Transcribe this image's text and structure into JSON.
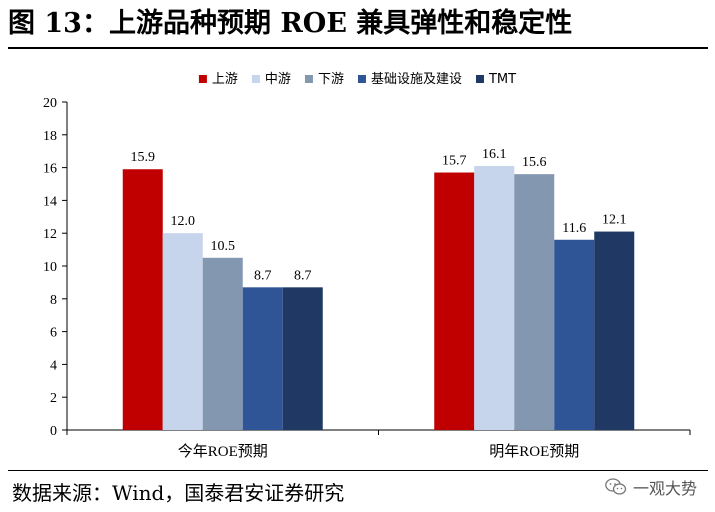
{
  "figure": {
    "title": "图 13：上游品种预期 ROE 兼具弹性和稳定性",
    "source": "数据来源：Wind，国泰君安证券研究",
    "watermark": "一观大势"
  },
  "chart_data": {
    "type": "bar",
    "title": "",
    "xlabel": "",
    "ylabel": "",
    "ylim": [
      0,
      20
    ],
    "yticks": [
      0,
      2,
      4,
      6,
      8,
      10,
      12,
      14,
      16,
      18,
      20
    ],
    "grid": false,
    "legend_position": "top",
    "categories": [
      "今年ROE预期",
      "明年ROE预期"
    ],
    "series": [
      {
        "name": "上游",
        "color": "#C00000",
        "values": [
          15.9,
          15.7
        ],
        "labels": [
          "15.9",
          "15.7"
        ]
      },
      {
        "name": "中游",
        "color": "#C6D4EC",
        "values": [
          12.0,
          16.1
        ],
        "labels": [
          "12.0",
          "16.1"
        ]
      },
      {
        "name": "下游",
        "color": "#8497B0",
        "values": [
          10.5,
          15.6
        ],
        "labels": [
          "10.5",
          "15.6"
        ]
      },
      {
        "name": "基础设施及建设",
        "color": "#2F5597",
        "values": [
          8.7,
          11.6
        ],
        "labels": [
          "8.7",
          "11.6"
        ]
      },
      {
        "name": "TMT",
        "color": "#203864",
        "values": [
          8.7,
          12.1
        ],
        "labels": [
          "8.7",
          "12.1"
        ]
      }
    ]
  }
}
